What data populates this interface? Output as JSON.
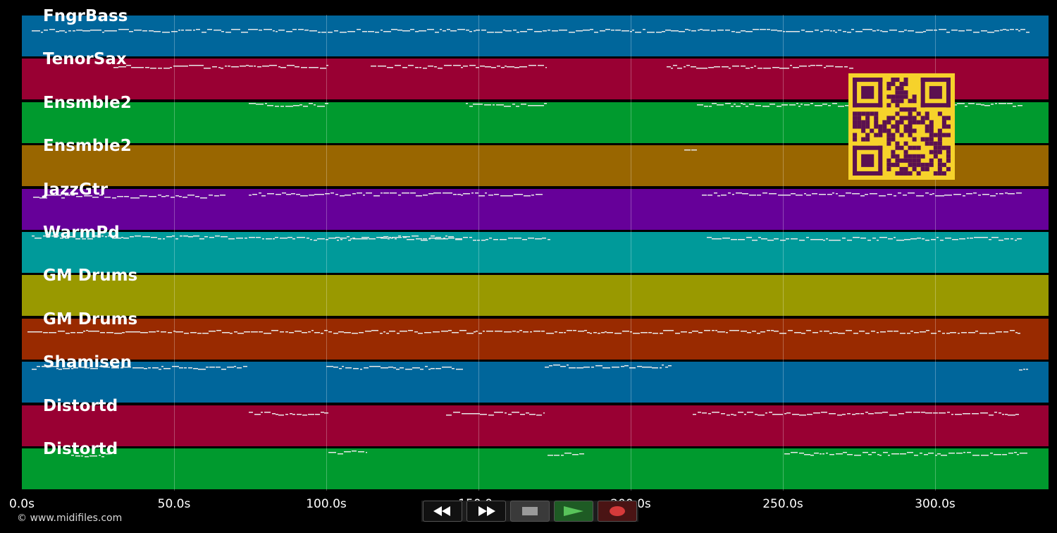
{
  "tracks": [
    {
      "name": "FngrBass",
      "color": "#00669b"
    },
    {
      "name": "TenorSax",
      "color": "#990033"
    },
    {
      "name": "Ensmble2",
      "color": "#009a2e"
    },
    {
      "name": "Ensmble2",
      "color": "#996600"
    },
    {
      "name": "JazzGtr",
      "color": "#660099"
    },
    {
      "name": "WarmPd",
      "color": "#009a9a"
    },
    {
      "name": "GM Drums",
      "color": "#999900"
    },
    {
      "name": "GM Drums",
      "color": "#992a00"
    },
    {
      "name": "Shamisen",
      "color": "#00669b"
    },
    {
      "name": "Distortd",
      "color": "#990033"
    },
    {
      "name": "Distortd",
      "color": "#009a2e"
    }
  ],
  "timeline": {
    "ticks": [
      "0.0s",
      "50.0s",
      "100.0s",
      "150.0s",
      "200.0s",
      "250.0s",
      "300.0s"
    ]
  },
  "copyright": "© www.midifiles.com",
  "transport": {
    "rewind_icon": "rewind-icon",
    "fast_forward_icon": "fast-forward-icon",
    "stop_icon": "stop-icon",
    "play_icon": "play-icon",
    "record_icon": "record-icon",
    "play_color": "#58c35a",
    "record_color": "#d63a3a"
  },
  "qr": {
    "dark_color": "#5b1150",
    "light_color": "#f6d22b"
  }
}
